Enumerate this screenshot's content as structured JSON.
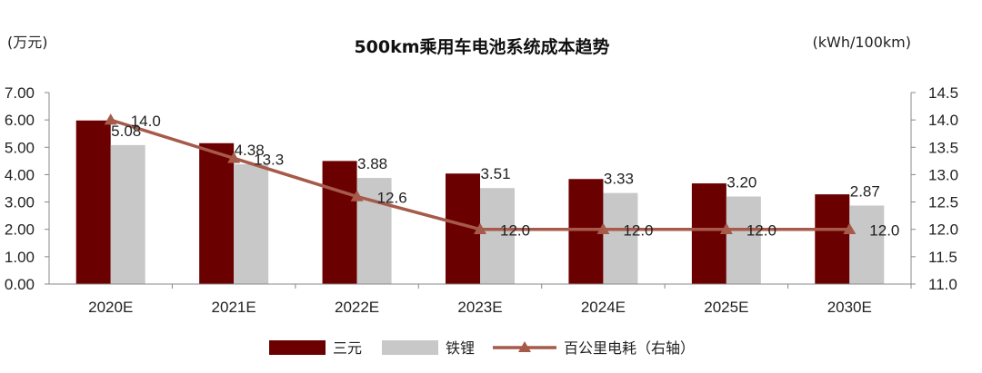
{
  "chart_data": {
    "type": "bar",
    "title": "500km乘用车电池系统成本趋势",
    "ylabel": "(万元)",
    "y2label": "(kWh/100km)",
    "categories": [
      "2020E",
      "2021E",
      "2022E",
      "2023E",
      "2024E",
      "2025E",
      "2030E"
    ],
    "ylim": [
      0,
      7
    ],
    "y_ticks": [
      "0.00",
      "1.00",
      "2.00",
      "3.00",
      "4.00",
      "5.00",
      "6.00",
      "7.00"
    ],
    "y2lim": [
      11.0,
      14.5
    ],
    "y2_ticks": [
      "11.0",
      "11.5",
      "12.0",
      "12.5",
      "13.0",
      "13.5",
      "14.0",
      "14.5"
    ],
    "grid": false,
    "legend_position": "bottom",
    "series": [
      {
        "name": "三元",
        "type": "bar",
        "color": "#6b0000",
        "values": [
          5.98,
          5.15,
          4.5,
          4.04,
          3.84,
          3.68,
          3.28
        ]
      },
      {
        "name": "铁锂",
        "type": "bar",
        "color": "#c8c8c8",
        "values": [
          5.08,
          4.38,
          3.88,
          3.51,
          3.33,
          3.2,
          2.87
        ],
        "labels": [
          "5.08",
          "4.38",
          "3.88",
          "3.51",
          "3.33",
          "3.20",
          "2.87"
        ]
      },
      {
        "name": "百公里电耗（右轴）",
        "type": "line",
        "axis": "right",
        "color": "#a65a4a",
        "values": [
          14.0,
          13.3,
          12.6,
          12.0,
          12.0,
          12.0,
          12.0
        ],
        "labels": [
          "14.0",
          "13.3",
          "12.6",
          "12.0",
          "12.0",
          "12.0",
          "12.0"
        ]
      }
    ]
  }
}
